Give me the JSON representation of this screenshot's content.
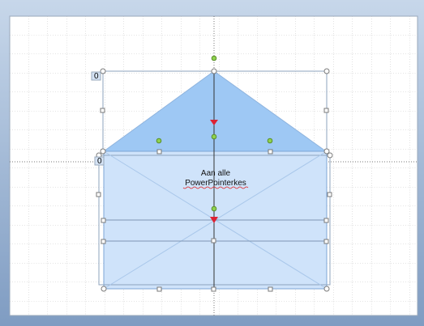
{
  "shape_labels": [
    "0",
    "0"
  ],
  "text_box": {
    "line1": "Aan alle",
    "line2": "PowerPointerkes"
  }
}
